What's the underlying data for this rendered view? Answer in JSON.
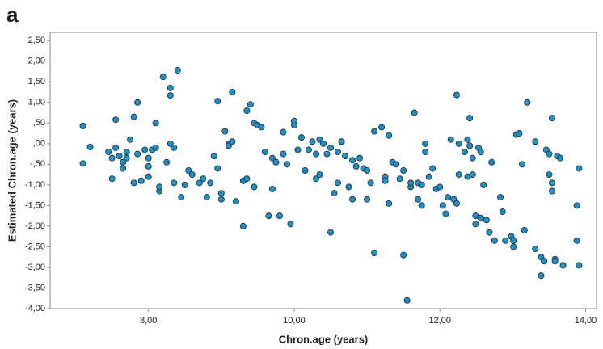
{
  "chart_data": {
    "type": "scatter",
    "panel_label": "a",
    "x_label": "Chron.age (years)",
    "y_label": "Estimated Chron.age (years)",
    "color": "#1f8fc4",
    "edge_color": "#1a2a3a",
    "xlim": [
      6.65,
      14.15
    ],
    "ylim": [
      -4.0,
      2.7
    ],
    "xticks": [
      {
        "value": 8,
        "label": "8,00"
      },
      {
        "value": 10,
        "label": "10,00"
      },
      {
        "value": 12,
        "label": "12,00"
      },
      {
        "value": 14,
        "label": "14,00"
      }
    ],
    "yticks": [
      {
        "value": 2.5,
        "label": "2,50"
      },
      {
        "value": 2,
        "label": "2,00"
      },
      {
        "value": 1.5,
        "label": "1,50"
      },
      {
        "value": 1,
        "label": "1,00"
      },
      {
        "value": 0.5,
        "label": ",50"
      },
      {
        "value": 0,
        "label": ",00"
      },
      {
        "value": -0.5,
        "label": "-,50"
      },
      {
        "value": -1,
        "label": "-1,00"
      },
      {
        "value": -1.5,
        "label": "-1,50"
      },
      {
        "value": -2,
        "label": "-2,00"
      },
      {
        "value": -2.5,
        "label": "-2,50"
      },
      {
        "value": -3,
        "label": "-3,00"
      },
      {
        "value": -3.5,
        "label": "-3,50"
      },
      {
        "value": -4,
        "label": "-4,00"
      }
    ],
    "x": [
      7.1,
      7.1,
      7.2,
      7.45,
      7.5,
      7.5,
      7.55,
      7.55,
      7.6,
      7.65,
      7.65,
      7.7,
      7.7,
      7.75,
      7.8,
      7.8,
      7.85,
      7.85,
      7.9,
      7.95,
      8.0,
      8.0,
      8.0,
      8.05,
      8.1,
      8.1,
      8.15,
      8.15,
      8.2,
      8.25,
      8.3,
      8.3,
      8.3,
      8.35,
      8.35,
      8.4,
      8.45,
      8.5,
      8.55,
      8.6,
      8.7,
      8.75,
      8.8,
      8.85,
      8.9,
      8.95,
      9.0,
      8.95,
      9.0,
      9.05,
      9.1,
      9.1,
      9.15,
      9.15,
      9.2,
      9.3,
      9.3,
      9.35,
      9.35,
      9.4,
      9.45,
      9.45,
      9.5,
      9.55,
      9.6,
      9.65,
      9.7,
      9.7,
      9.75,
      9.8,
      9.85,
      9.85,
      9.9,
      9.95,
      10.0,
      10.0,
      10.05,
      10.1,
      10.15,
      10.2,
      10.25,
      10.3,
      10.3,
      10.35,
      10.35,
      10.4,
      10.45,
      10.5,
      10.5,
      10.55,
      10.6,
      10.6,
      10.65,
      10.7,
      10.75,
      10.8,
      10.8,
      10.85,
      10.9,
      10.95,
      11.0,
      11.0,
      11.05,
      11.1,
      11.1,
      11.2,
      11.25,
      11.25,
      11.3,
      11.3,
      11.35,
      11.4,
      11.45,
      11.5,
      11.5,
      11.55,
      11.6,
      11.6,
      11.65,
      11.7,
      11.7,
      11.75,
      11.75,
      11.8,
      11.8,
      11.85,
      11.9,
      11.95,
      12.0,
      12.04,
      12.08,
      12.11,
      12.15,
      12.19,
      12.23,
      12.23,
      12.26,
      12.26,
      12.34,
      12.38,
      12.38,
      12.41,
      12.41,
      12.45,
      12.45,
      12.49,
      12.49,
      12.53,
      12.56,
      12.56,
      12.6,
      12.64,
      12.68,
      12.71,
      12.75,
      12.83,
      12.86,
      12.9,
      12.98,
      13.01,
      13.01,
      13.05,
      13.09,
      13.13,
      13.16,
      13.2,
      13.31,
      13.31,
      13.39,
      13.39,
      13.43,
      13.46,
      13.5,
      13.5,
      13.54,
      13.54,
      13.54,
      13.58,
      13.58,
      13.61,
      13.65,
      13.69,
      13.88,
      13.88,
      13.91,
      13.91
    ],
    "y": [
      0.43,
      -0.48,
      -0.08,
      -0.2,
      -0.85,
      -0.35,
      0.58,
      -0.1,
      -0.3,
      -0.6,
      -0.45,
      -0.2,
      -0.35,
      0.1,
      0.65,
      -0.95,
      -0.25,
      1.0,
      -0.9,
      -0.15,
      -0.35,
      -0.55,
      -0.8,
      -0.15,
      -0.1,
      0.5,
      -1.15,
      -1.05,
      1.62,
      -0.45,
      0.0,
      1.35,
      1.17,
      -0.1,
      -0.95,
      1.78,
      -1.3,
      -1.0,
      -0.65,
      -0.75,
      -0.95,
      -0.85,
      -1.3,
      -0.95,
      -0.3,
      1.03,
      -1.35,
      -0.6,
      -1.2,
      0.3,
      0.0,
      -0.05,
      1.25,
      0.05,
      -1.4,
      -2.0,
      -0.9,
      -0.85,
      0.8,
      0.95,
      -1.05,
      0.5,
      0.45,
      0.4,
      -0.2,
      -1.75,
      -0.35,
      -1.1,
      -0.45,
      -1.75,
      0.28,
      -0.25,
      -0.5,
      -1.95,
      0.45,
      0.55,
      -0.15,
      0.15,
      -0.65,
      -0.15,
      0.05,
      -0.25,
      -0.85,
      0.1,
      -0.75,
      0.0,
      -0.25,
      -0.1,
      -2.15,
      -1.2,
      -0.95,
      -0.2,
      0.05,
      -0.3,
      -1.05,
      -0.4,
      -1.35,
      -0.55,
      -0.35,
      -0.6,
      -1.35,
      -0.65,
      -0.95,
      0.3,
      -2.65,
      0.4,
      -0.8,
      -0.9,
      -1.45,
      0.2,
      -0.45,
      -0.5,
      -0.85,
      -2.7,
      -0.65,
      -3.8,
      -1.05,
      -0.95,
      0.75,
      -1.35,
      -0.95,
      -1.0,
      -1.5,
      0.0,
      -0.2,
      -0.8,
      -0.6,
      -1.1,
      -1.05,
      -1.5,
      -1.7,
      -1.3,
      0.1,
      -1.35,
      -1.45,
      1.18,
      0.0,
      -0.75,
      -0.2,
      0.1,
      -0.8,
      0.62,
      -0.05,
      -0.35,
      -0.75,
      -1.75,
      -1.95,
      -0.1,
      -1.8,
      -0.2,
      -1.0,
      -1.85,
      -2.15,
      -0.45,
      -2.35,
      -1.3,
      -1.65,
      -2.35,
      -2.25,
      -2.5,
      -2.35,
      0.22,
      0.25,
      -0.5,
      -2.1,
      1.0,
      0.05,
      -2.55,
      -2.75,
      -3.2,
      -2.85,
      -0.15,
      -0.25,
      -0.75,
      -0.95,
      -1.15,
      0.62,
      -2.8,
      -2.85,
      -0.3,
      -0.35,
      -2.95,
      -1.5,
      -2.35,
      -0.6,
      -2.95
    ]
  }
}
